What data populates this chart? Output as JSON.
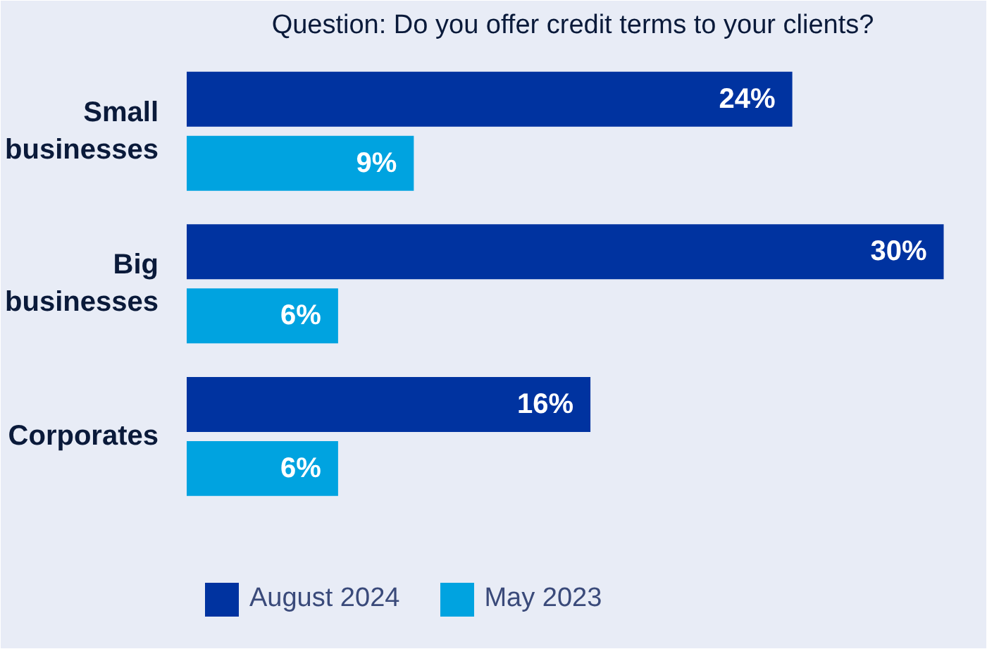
{
  "chart_data": {
    "type": "bar",
    "orientation": "horizontal",
    "title": "Question: Do you offer credit terms to your clients?",
    "categories": [
      "Small\nbusinesses",
      "Big\nbusinesses",
      "Corporates"
    ],
    "series": [
      {
        "name": "August 2024",
        "color": "#0033a0",
        "values": [
          24,
          30,
          16
        ],
        "value_labels": [
          "24%",
          "30%",
          "16%"
        ]
      },
      {
        "name": "May 2023",
        "color": "#00a3e0",
        "values": [
          9,
          6,
          6
        ],
        "value_labels": [
          "9%",
          "6%",
          "6%"
        ]
      }
    ],
    "legend": "bottom",
    "grid": false,
    "tick_labels": "y"
  }
}
